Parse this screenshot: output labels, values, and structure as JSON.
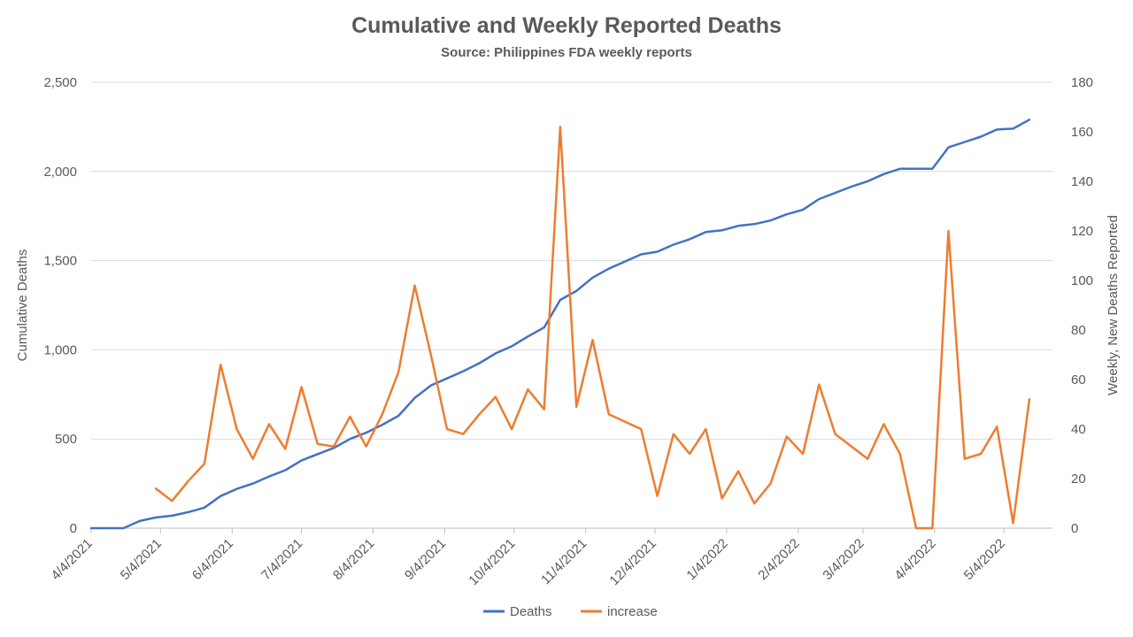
{
  "chart_data": {
    "type": "line",
    "title": "Cumulative and Weekly Reported Deaths",
    "subtitle": "Source: Philippines FDA weekly reports",
    "ylabel": "Cumulative Deaths",
    "y2label": "Weekly, New Deaths Reported",
    "ylim": [
      0,
      2500
    ],
    "y2lim": [
      0,
      180
    ],
    "y_ticks": [
      "0",
      "500",
      "1,000",
      "1,500",
      "2,000",
      "2,500"
    ],
    "y2_ticks": [
      "0",
      "20",
      "40",
      "60",
      "80",
      "100",
      "120",
      "140",
      "160",
      "180"
    ],
    "x_ticks": [
      "4/4/2021",
      "5/4/2021",
      "6/4/2021",
      "7/4/2021",
      "8/4/2021",
      "9/4/2021",
      "10/4/2021",
      "11/4/2021",
      "12/4/2021",
      "1/4/2022",
      "2/4/2022",
      "3/4/2022",
      "4/4/2022",
      "5/4/2022"
    ],
    "xlim": [
      "4/4/2021",
      "5/25/2022"
    ],
    "grid": true,
    "legend": "bottom",
    "series": [
      {
        "name": "Deaths",
        "axis": "left",
        "color": "#4472C4",
        "points": [
          [
            "4/4/2021",
            0
          ],
          [
            "4/11/2021",
            0
          ],
          [
            "4/18/2021",
            0
          ],
          [
            "4/25/2021",
            40
          ],
          [
            "5/2/2021",
            60
          ],
          [
            "5/9/2021",
            70
          ],
          [
            "5/16/2021",
            90
          ],
          [
            "5/23/2021",
            115
          ],
          [
            "5/30/2021",
            180
          ],
          [
            "6/6/2021",
            220
          ],
          [
            "6/13/2021",
            250
          ],
          [
            "6/20/2021",
            290
          ],
          [
            "6/27/2021",
            325
          ],
          [
            "7/4/2021",
            380
          ],
          [
            "7/11/2021",
            415
          ],
          [
            "7/18/2021",
            450
          ],
          [
            "7/25/2021",
            500
          ],
          [
            "8/1/2021",
            535
          ],
          [
            "8/8/2021",
            580
          ],
          [
            "8/15/2021",
            630
          ],
          [
            "8/22/2021",
            730
          ],
          [
            "8/29/2021",
            800
          ],
          [
            "9/5/2021",
            840
          ],
          [
            "9/12/2021",
            880
          ],
          [
            "9/19/2021",
            925
          ],
          [
            "9/26/2021",
            980
          ],
          [
            "10/3/2021",
            1020
          ],
          [
            "10/10/2021",
            1075
          ],
          [
            "10/17/2021",
            1125
          ],
          [
            "10/24/2021",
            1280
          ],
          [
            "10/31/2021",
            1330
          ],
          [
            "11/7/2021",
            1405
          ],
          [
            "11/14/2021",
            1455
          ],
          [
            "11/21/2021",
            1495
          ],
          [
            "11/28/2021",
            1535
          ],
          [
            "12/5/2021",
            1550
          ],
          [
            "12/12/2021",
            1590
          ],
          [
            "12/19/2021",
            1620
          ],
          [
            "12/26/2021",
            1660
          ],
          [
            "1/2/2022",
            1670
          ],
          [
            "1/9/2022",
            1695
          ],
          [
            "1/16/2022",
            1705
          ],
          [
            "1/23/2022",
            1725
          ],
          [
            "1/30/2022",
            1760
          ],
          [
            "2/6/2022",
            1785
          ],
          [
            "2/13/2022",
            1845
          ],
          [
            "2/20/2022",
            1880
          ],
          [
            "2/27/2022",
            1915
          ],
          [
            "3/6/2022",
            1945
          ],
          [
            "3/13/2022",
            1985
          ],
          [
            "3/20/2022",
            2015
          ],
          [
            "3/27/2022",
            2015
          ],
          [
            "4/3/2022",
            2015
          ],
          [
            "4/10/2022",
            2135
          ],
          [
            "4/17/2022",
            2165
          ],
          [
            "4/24/2022",
            2195
          ],
          [
            "5/1/2022",
            2235
          ],
          [
            "5/8/2022",
            2240
          ],
          [
            "5/15/2022",
            2290
          ]
        ]
      },
      {
        "name": "increase",
        "axis": "right",
        "color": "#ED7D31",
        "points": [
          [
            "5/2/2021",
            16
          ],
          [
            "5/9/2021",
            11
          ],
          [
            "5/16/2021",
            19
          ],
          [
            "5/23/2021",
            26
          ],
          [
            "5/30/2021",
            66
          ],
          [
            "6/6/2021",
            40
          ],
          [
            "6/13/2021",
            28
          ],
          [
            "6/20/2021",
            42
          ],
          [
            "6/27/2021",
            32
          ],
          [
            "7/4/2021",
            57
          ],
          [
            "7/11/2021",
            34
          ],
          [
            "7/18/2021",
            33
          ],
          [
            "7/25/2021",
            45
          ],
          [
            "8/1/2021",
            33
          ],
          [
            "8/8/2021",
            46
          ],
          [
            "8/15/2021",
            63
          ],
          [
            "8/22/2021",
            98
          ],
          [
            "8/29/2021",
            70
          ],
          [
            "9/5/2021",
            40
          ],
          [
            "9/12/2021",
            38
          ],
          [
            "9/19/2021",
            46
          ],
          [
            "9/26/2021",
            53
          ],
          [
            "10/3/2021",
            40
          ],
          [
            "10/10/2021",
            56
          ],
          [
            "10/17/2021",
            48
          ],
          [
            "10/24/2021",
            162
          ],
          [
            "10/31/2021",
            49
          ],
          [
            "11/7/2021",
            76
          ],
          [
            "11/14/2021",
            46
          ],
          [
            "11/21/2021",
            43
          ],
          [
            "11/28/2021",
            40
          ],
          [
            "12/5/2021",
            13
          ],
          [
            "12/12/2021",
            38
          ],
          [
            "12/19/2021",
            30
          ],
          [
            "12/26/2021",
            40
          ],
          [
            "1/2/2022",
            12
          ],
          [
            "1/9/2022",
            23
          ],
          [
            "1/16/2022",
            10
          ],
          [
            "1/23/2022",
            18
          ],
          [
            "1/30/2022",
            37
          ],
          [
            "2/6/2022",
            30
          ],
          [
            "2/13/2022",
            58
          ],
          [
            "2/20/2022",
            38
          ],
          [
            "2/27/2022",
            33
          ],
          [
            "3/6/2022",
            28
          ],
          [
            "3/13/2022",
            42
          ],
          [
            "3/20/2022",
            30
          ],
          [
            "3/27/2022",
            0
          ],
          [
            "4/3/2022",
            0
          ],
          [
            "4/10/2022",
            120
          ],
          [
            "4/17/2022",
            28
          ],
          [
            "4/24/2022",
            30
          ],
          [
            "5/1/2022",
            41
          ],
          [
            "5/8/2022",
            2
          ],
          [
            "5/15/2022",
            52
          ]
        ]
      }
    ]
  }
}
